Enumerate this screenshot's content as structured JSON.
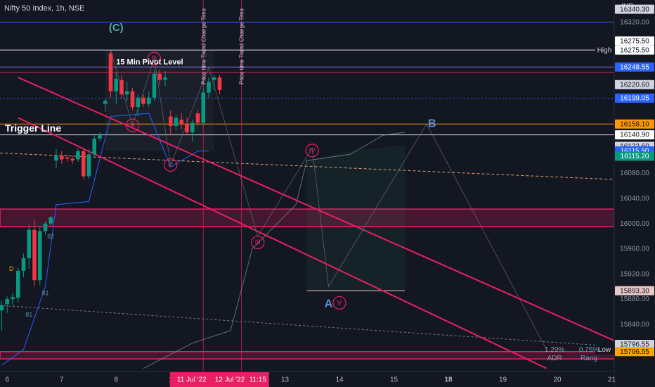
{
  "header": {
    "symbol": "Nifty 50 Index, 1h, NSE",
    "currency": "INR"
  },
  "chart_data": {
    "type": "candlestick",
    "title": "Nifty 50 Index, 1h, NSE",
    "ylim": [
      15765,
      16355
    ],
    "y_ticks": [
      16320,
      16280,
      16240,
      16200,
      16160,
      16120,
      16080,
      16040,
      16000,
      15960,
      15920,
      15880,
      15840,
      15800
    ],
    "x_ticks": [
      {
        "label": "6",
        "bar": 1
      },
      {
        "label": "7",
        "bar": 11
      },
      {
        "label": "8",
        "bar": 21
      },
      {
        "label": "1",
        "bar": 31
      },
      {
        "label": "13",
        "bar": 52
      },
      {
        "label": "14",
        "bar": 62
      },
      {
        "label": "15",
        "bar": 72
      },
      {
        "label": "18",
        "bar": 82
      },
      {
        "label": "19",
        "bar": 92
      },
      {
        "label": "20",
        "bar": 102
      },
      {
        "label": "21",
        "bar": 112
      }
    ],
    "x_highlight": [
      {
        "label": "11 Jul '22",
        "bar": 35
      },
      {
        "label": "12 Jul '22",
        "bar": 42
      },
      {
        "label": "11:15",
        "bar": 47
      }
    ],
    "candles": [
      {
        "o": 15862,
        "h": 15878,
        "l": 15830,
        "c": 15870
      },
      {
        "o": 15872,
        "h": 15884,
        "l": 15858,
        "c": 15880
      },
      {
        "o": 15880,
        "h": 15890,
        "l": 15870,
        "c": 15883
      },
      {
        "o": 15882,
        "h": 15930,
        "l": 15875,
        "c": 15925
      },
      {
        "o": 15925,
        "h": 15952,
        "l": 15915,
        "c": 15945
      },
      {
        "o": 15945,
        "h": 15998,
        "l": 15928,
        "c": 15990
      },
      {
        "o": 15990,
        "h": 16005,
        "l": 15900,
        "c": 15910
      },
      {
        "o": 15910,
        "h": 15995,
        "l": 15902,
        "c": 15988
      },
      {
        "o": 15988,
        "h": 16004,
        "l": 15982,
        "c": 16000
      },
      {
        "o": 16000,
        "h": 16012,
        "l": 15995,
        "c": 16010
      },
      {
        "o": 16100,
        "h": 16118,
        "l": 16088,
        "c": 16108
      },
      {
        "o": 16108,
        "h": 16115,
        "l": 16095,
        "c": 16102
      },
      {
        "o": 16105,
        "h": 16110,
        "l": 16098,
        "c": 16103
      },
      {
        "o": 16103,
        "h": 16108,
        "l": 16095,
        "c": 16100
      },
      {
        "o": 16102,
        "h": 16120,
        "l": 16098,
        "c": 16115
      },
      {
        "o": 16115,
        "h": 16118,
        "l": 16070,
        "c": 16075
      },
      {
        "o": 16075,
        "h": 16118,
        "l": 16070,
        "c": 16110
      },
      {
        "o": 16110,
        "h": 16140,
        "l": 16105,
        "c": 16135
      },
      {
        "o": 16135,
        "h": 16145,
        "l": 16130,
        "c": 16140
      },
      {
        "o": 16190,
        "h": 16198,
        "l": 16178,
        "c": 16195
      },
      {
        "o": 16270,
        "h": 16275,
        "l": 16200,
        "c": 16210
      },
      {
        "o": 16210,
        "h": 16240,
        "l": 16190,
        "c": 16230
      },
      {
        "o": 16228,
        "h": 16236,
        "l": 16198,
        "c": 16205
      },
      {
        "o": 16205,
        "h": 16225,
        "l": 16195,
        "c": 16210
      },
      {
        "o": 16210,
        "h": 16215,
        "l": 16180,
        "c": 16185
      },
      {
        "o": 16185,
        "h": 16205,
        "l": 16170,
        "c": 16200
      },
      {
        "o": 16200,
        "h": 16205,
        "l": 16185,
        "c": 16190
      },
      {
        "o": 16190,
        "h": 16210,
        "l": 16185,
        "c": 16200
      },
      {
        "o": 16200,
        "h": 16245,
        "l": 16195,
        "c": 16238
      },
      {
        "o": 16238,
        "h": 16245,
        "l": 16220,
        "c": 16228
      },
      {
        "o": 16228,
        "h": 16242,
        "l": 16218,
        "c": 16232
      },
      {
        "o": 16170,
        "h": 16180,
        "l": 16140,
        "c": 16155
      },
      {
        "o": 16155,
        "h": 16172,
        "l": 16148,
        "c": 16168
      },
      {
        "o": 16165,
        "h": 16175,
        "l": 16150,
        "c": 16158
      },
      {
        "o": 16158,
        "h": 16168,
        "l": 16140,
        "c": 16145
      },
      {
        "o": 16145,
        "h": 16165,
        "l": 16130,
        "c": 16160
      },
      {
        "o": 16175,
        "h": 16180,
        "l": 16155,
        "c": 16160
      },
      {
        "o": 16160,
        "h": 16215,
        "l": 16155,
        "c": 16208
      },
      {
        "o": 16208,
        "h": 16232,
        "l": 16200,
        "c": 16225
      },
      {
        "o": 16228,
        "h": 16236,
        "l": 16212,
        "c": 16232
      },
      {
        "o": 16232,
        "h": 16236,
        "l": 16205,
        "c": 16212
      }
    ],
    "horizontal_levels": [
      {
        "price": 16320,
        "color": "#2962ff"
      },
      {
        "price": 16275.5,
        "color": "#d1d4dc"
      },
      {
        "price": 16248.55,
        "color": "#8d6ad8"
      },
      {
        "price": 16240,
        "color": "#e91e63"
      },
      {
        "price": 16199.05,
        "color": "#2962ff",
        "dotted": true
      },
      {
        "price": 16158.1,
        "color": "#ff9800"
      },
      {
        "price": 16140.9,
        "color": "#d1d4dc"
      }
    ],
    "zones": [
      {
        "from": 15995,
        "to": 16023,
        "color": "#e91e63"
      },
      {
        "from": 15785,
        "to": 15796.55,
        "color": "#e91e63"
      }
    ],
    "trend_lines": [
      {
        "x1": 3,
        "y1": 16232,
        "x2": 113,
        "y2": 15812
      },
      {
        "x1": 3,
        "y1": 16168,
        "x2": 100,
        "y2": 15770
      }
    ],
    "price_labels": [
      {
        "text": "16340.30",
        "price": 16340.3,
        "bg": "#d1d4dc",
        "fg": "#131722"
      },
      {
        "text": "16320.00",
        "price": 16320,
        "bg": "none",
        "fg": "#8f96a3"
      },
      {
        "text": "16275.50",
        "price": 16290,
        "bg": "#ffffff",
        "fg": "#131722"
      },
      {
        "text": "16275.50",
        "price": 16275.5,
        "bg": "#ffffff",
        "fg": "#131722"
      },
      {
        "text": "16248.55",
        "price": 16248.55,
        "bg": "#2962ff",
        "fg": "#ffffff"
      },
      {
        "text": "16220.60",
        "price": 16220.6,
        "bg": "#d1d4dc",
        "fg": "#131722"
      },
      {
        "text": "16199.05",
        "price": 16199.05,
        "bg": "#2962ff",
        "fg": "#ffffff"
      },
      {
        "text": "16158.10",
        "price": 16158.1,
        "bg": "#ff9800",
        "fg": "#131722"
      },
      {
        "text": "16140.90",
        "price": 16140.9,
        "bg": "#ffffff",
        "fg": "#131722"
      },
      {
        "text": "16122.60",
        "price": 16122.6,
        "bg": "#d1d4dc",
        "fg": "#131722"
      },
      {
        "text": "16115.50",
        "price": 16115.5,
        "bg": "#2962ff",
        "fg": "#ffffff"
      },
      {
        "text": "16115.20",
        "price": 16107,
        "bg": "#089981",
        "fg": "#ffffff"
      },
      {
        "text": "16080.00",
        "price": 16080,
        "bg": "none",
        "fg": "#8f96a3"
      },
      {
        "text": "16040.00",
        "price": 16040,
        "bg": "none",
        "fg": "#8f96a3"
      },
      {
        "text": "16000.00",
        "price": 16000,
        "bg": "none",
        "fg": "#8f96a3"
      },
      {
        "text": "15960.00",
        "price": 15960,
        "bg": "none",
        "fg": "#8f96a3"
      },
      {
        "text": "15920.00",
        "price": 15920,
        "bg": "none",
        "fg": "#8f96a3"
      },
      {
        "text": "15893.30",
        "price": 15893.3,
        "bg": "#e8c7c5",
        "fg": "#131722"
      },
      {
        "text": "15880.00",
        "price": 15880,
        "bg": "none",
        "fg": "#8f96a3"
      },
      {
        "text": "15840.00",
        "price": 15840,
        "bg": "none",
        "fg": "#8f96a3"
      },
      {
        "text": "15796.55",
        "price": 15808,
        "bg": "#d1d4dc",
        "fg": "#131722"
      },
      {
        "text": "15796.55",
        "price": 15796.55,
        "bg": "#f7a600",
        "fg": "#131722"
      }
    ],
    "annotations": [
      {
        "text": "Trigger Line",
        "bar": 0,
        "price": 16150
      },
      {
        "text": "15 Min Pivot Level",
        "bar": 21,
        "price": 16253
      },
      {
        "text": "High",
        "price": 16275.5
      },
      {
        "text": "Low",
        "price": 15800
      },
      {
        "text": "B",
        "bar": 79,
        "price": 16158
      },
      {
        "text": "A",
        "bar": 60,
        "price": 15872
      },
      {
        "text": "Price time Trend Change Time",
        "bar": 37
      },
      {
        "text": "Price time Trend Change Time",
        "bar": 44
      },
      {
        "text": "82",
        "bar": 9,
        "price": 15976
      },
      {
        "text": "81",
        "bar": 8,
        "price": 15886
      },
      {
        "text": "81",
        "bar": 5,
        "price": 15852
      },
      {
        "text": "D",
        "bar": 1,
        "price": 15925
      }
    ],
    "wave_labels": [
      {
        "text": "(C)",
        "bar": 21,
        "price": 16310
      },
      {
        "text": "A",
        "bar": 24,
        "price": 16156
      },
      {
        "text": "B",
        "bar": 28,
        "price": 16262
      },
      {
        "text": "C",
        "bar": 31,
        "price": 16093
      },
      {
        "text": "III",
        "bar": 47,
        "price": 15970
      },
      {
        "text": "IV",
        "bar": 57,
        "price": 16116
      },
      {
        "text": "V",
        "bar": 62,
        "price": 15874
      }
    ],
    "stats": [
      {
        "value": "1.29%",
        "label": "ADR"
      },
      {
        "value": "0.75%",
        "label": "Rang"
      }
    ]
  }
}
